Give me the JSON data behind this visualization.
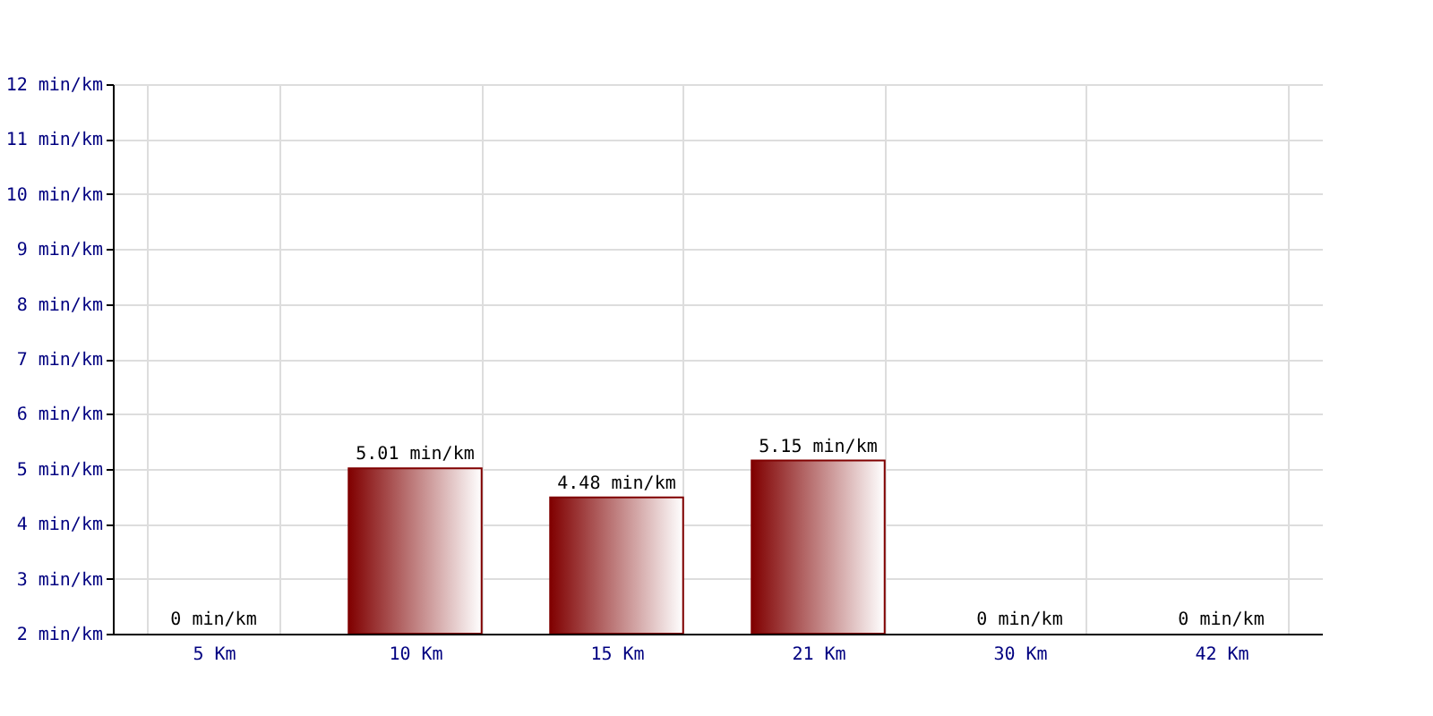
{
  "chart_data": {
    "type": "bar",
    "categories": [
      "5 Km",
      "10 Km",
      "15 Km",
      "21 Km",
      "30 Km",
      "42 Km"
    ],
    "series": [
      {
        "color": "#800000",
        "values": [
          null,
          5.01,
          4.48,
          5.15,
          null,
          null
        ],
        "value_labels": [
          "0 min/km",
          "5.01 min/km",
          "4.48 min/km",
          "5.15 min/km",
          "0 min/km",
          "0 min/km"
        ]
      }
    ],
    "ylim": [
      2,
      12
    ],
    "yticks": [
      {
        "value": 2,
        "label": "2 min/km"
      },
      {
        "value": 3,
        "label": "3 min/km"
      },
      {
        "value": 4,
        "label": "4 min/km"
      },
      {
        "value": 5,
        "label": "5 min/km"
      },
      {
        "value": 6,
        "label": "6 min/km"
      },
      {
        "value": 7,
        "label": "7 min/km"
      },
      {
        "value": 8,
        "label": "8 min/km"
      },
      {
        "value": 9,
        "label": "9 min/km"
      },
      {
        "value": 10,
        "label": "10 min/km"
      },
      {
        "value": 11,
        "label": "11 min/km"
      },
      {
        "value": 12,
        "label": "12 min/km"
      }
    ],
    "grid": true
  }
}
